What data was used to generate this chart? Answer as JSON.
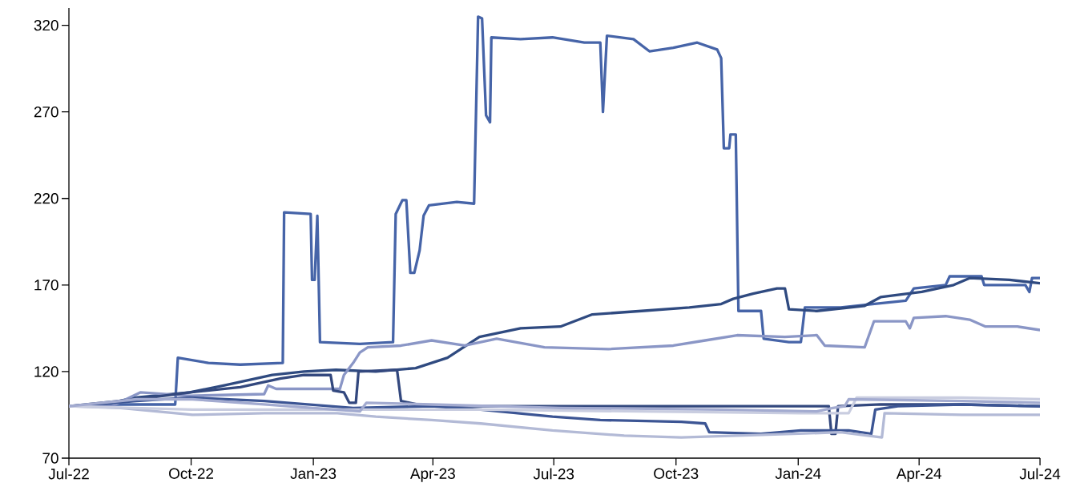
{
  "chart_data": {
    "type": "line",
    "xlim": [
      "2022-07-01",
      "2024-07-01"
    ],
    "ylim": [
      70,
      330
    ],
    "xticks": [
      {
        "value": "2022-07-01",
        "label": "Jul-22"
      },
      {
        "value": "2022-10-01",
        "label": "Oct-22"
      },
      {
        "value": "2023-01-01",
        "label": "Jan-23"
      },
      {
        "value": "2023-04-01",
        "label": "Apr-23"
      },
      {
        "value": "2023-07-01",
        "label": "Jul-23"
      },
      {
        "value": "2023-10-01",
        "label": "Oct-23"
      },
      {
        "value": "2024-01-01",
        "label": "Jan-24"
      },
      {
        "value": "2024-04-01",
        "label": "Apr-24"
      },
      {
        "value": "2024-07-01",
        "label": "Jul-24"
      }
    ],
    "yticks": [
      70,
      120,
      170,
      220,
      270,
      320
    ],
    "marker": "none",
    "line_style": "solid",
    "series": [
      {
        "color": "#4664a8",
        "x": [
          "2022-07-01",
          "2022-08-09",
          "2022-09-19",
          "2022-09-21",
          "2022-10-14",
          "2022-11-07",
          "2022-12-09",
          "2022-12-10",
          "2022-12-30",
          "2022-12-31",
          "2023-01-02",
          "2023-01-04",
          "2023-01-06",
          "2023-02-05",
          "2023-03-02",
          "2023-03-04",
          "2023-03-09",
          "2023-03-12",
          "2023-03-15",
          "2023-03-18",
          "2023-03-22",
          "2023-03-25",
          "2023-03-29",
          "2023-04-19",
          "2023-05-02",
          "2023-05-05",
          "2023-05-08",
          "2023-05-11",
          "2023-05-14",
          "2023-05-15",
          "2023-06-06",
          "2023-06-30",
          "2023-07-24",
          "2023-08-05",
          "2023-08-07",
          "2023-08-10",
          "2023-08-30",
          "2023-09-11",
          "2023-09-29",
          "2023-10-17",
          "2023-11-01",
          "2023-11-04",
          "2023-11-06",
          "2023-11-10",
          "2023-11-11",
          "2023-11-15",
          "2023-11-17",
          "2023-12-04",
          "2023-12-06",
          "2023-12-25",
          "2024-01-03",
          "2024-01-06",
          "2024-02-02",
          "2024-02-26",
          "2024-03-22",
          "2024-03-28",
          "2024-04-21",
          "2024-04-24",
          "2024-05-18",
          "2024-05-20",
          "2024-06-20",
          "2024-06-23",
          "2024-06-25",
          "2024-07-01"
        ],
        "values": [
          100,
          101,
          101,
          128,
          125,
          124,
          125,
          212,
          211,
          173,
          173,
          210,
          137,
          136,
          137,
          211,
          219,
          219,
          177,
          177,
          190,
          210,
          216,
          218,
          217,
          325,
          324,
          268,
          264,
          313,
          312,
          313,
          310,
          310,
          270,
          314,
          312,
          305,
          307,
          310,
          306,
          301,
          249,
          249,
          257,
          257,
          155,
          155,
          139,
          137,
          137,
          157,
          157,
          159,
          161,
          168,
          170,
          175,
          175,
          170,
          170,
          166,
          174,
          174
        ]
      },
      {
        "color": "#2f4a80",
        "x": [
          "2022-07-01",
          "2022-07-27",
          "2022-08-20",
          "2022-09-30",
          "2022-10-26",
          "2022-12-01",
          "2022-12-25",
          "2023-01-18",
          "2023-02-17",
          "2023-03-19",
          "2023-04-12",
          "2023-05-06",
          "2023-06-06",
          "2023-07-06",
          "2023-07-30",
          "2023-09-05",
          "2023-10-11",
          "2023-11-04",
          "2023-11-13",
          "2023-11-28",
          "2023-12-16",
          "2023-12-22",
          "2023-12-25",
          "2024-01-15",
          "2024-02-20",
          "2024-03-03",
          "2024-04-03",
          "2024-04-27",
          "2024-05-09",
          "2024-06-08",
          "2024-07-01"
        ],
        "values": [
          100,
          101,
          105,
          108,
          112,
          118,
          120,
          121,
          120,
          122,
          128,
          140,
          145,
          146,
          153,
          155,
          157,
          159,
          162,
          165,
          168,
          168,
          156,
          155,
          158,
          163,
          166,
          170,
          174,
          173,
          171
        ]
      },
      {
        "color": "#8a96c6",
        "x": [
          "2022-07-01",
          "2022-08-02",
          "2022-08-24",
          "2022-09-30",
          "2022-11-25",
          "2022-11-28",
          "2022-12-04",
          "2023-01-06",
          "2023-01-21",
          "2023-01-24",
          "2023-01-31",
          "2023-02-05",
          "2023-02-11",
          "2023-03-08",
          "2023-03-31",
          "2023-04-25",
          "2023-05-19",
          "2023-06-24",
          "2023-08-11",
          "2023-09-29",
          "2023-10-23",
          "2023-11-16",
          "2023-12-22",
          "2024-01-15",
          "2024-01-21",
          "2024-02-20",
          "2024-02-27",
          "2024-03-22",
          "2024-03-25",
          "2024-03-28",
          "2024-04-21",
          "2024-05-09",
          "2024-05-21",
          "2024-06-14",
          "2024-07-01"
        ],
        "values": [
          100,
          100,
          108,
          106,
          107,
          112,
          110,
          110,
          110,
          118,
          125,
          131,
          134,
          135,
          138,
          135,
          139,
          134,
          133,
          135,
          138,
          141,
          140,
          141,
          135,
          134,
          149,
          149,
          145,
          151,
          152,
          150,
          146,
          146,
          144
        ]
      },
      {
        "color": "#33487e",
        "x": [
          "2022-07-01",
          "2022-08-21",
          "2022-09-30",
          "2022-11-07",
          "2022-12-07",
          "2022-12-25",
          "2023-01-14",
          "2023-01-16",
          "2023-01-24",
          "2023-01-28",
          "2023-02-02",
          "2023-02-04",
          "2023-03-05",
          "2023-03-08",
          "2023-03-20",
          "2023-04-13",
          "2024-01-24",
          "2024-01-26",
          "2024-01-29",
          "2024-01-31",
          "2024-03-03",
          "2024-05-03",
          "2024-07-01"
        ],
        "values": [
          100,
          104,
          108,
          111,
          116,
          118,
          118,
          109,
          108,
          102,
          102,
          120,
          121,
          103,
          101,
          100,
          100,
          84,
          84,
          100,
          101,
          101,
          100
        ]
      },
      {
        "color": "#3c5594",
        "x": [
          "2022-07-01",
          "2022-08-21",
          "2022-09-30",
          "2022-11-25",
          "2023-01-31",
          "2023-03-31",
          "2023-05-07",
          "2023-06-30",
          "2023-08-05",
          "2023-10-05",
          "2023-10-23",
          "2023-10-26",
          "2023-12-04",
          "2024-01-03",
          "2024-02-08",
          "2024-02-25",
          "2024-02-28",
          "2024-03-16",
          "2024-05-03",
          "2024-07-01"
        ],
        "values": [
          100,
          103,
          105,
          103,
          99,
          100,
          98,
          94,
          92,
          91,
          90,
          85,
          84,
          86,
          86,
          84,
          98,
          100,
          101,
          100
        ]
      },
      {
        "color": "#b3bad6",
        "x": [
          "2022-07-01",
          "2022-08-09",
          "2022-10-02",
          "2022-11-25",
          "2023-01-19",
          "2023-02-17",
          "2023-03-31",
          "2023-05-07",
          "2023-06-30",
          "2023-08-23",
          "2023-10-05",
          "2023-11-16",
          "2023-12-28",
          "2024-02-02",
          "2024-03-04",
          "2024-03-06",
          "2024-05-03",
          "2024-07-01"
        ],
        "values": [
          100,
          99,
          95,
          96,
          96,
          94,
          92,
          90,
          86,
          83,
          82,
          83,
          84,
          85,
          82,
          96,
          95,
          95
        ]
      },
      {
        "color": "#c9cde0",
        "x": [
          "2022-07-01",
          "2022-10-02",
          "2023-01-06",
          "2023-05-07",
          "2023-09-05",
          "2024-01-03",
          "2024-02-08",
          "2024-02-14",
          "2024-05-03",
          "2024-07-01"
        ],
        "values": [
          100,
          98,
          98,
          98,
          97,
          96,
          96,
          105,
          105,
          104
        ]
      },
      {
        "color": "#a3abd0",
        "x": [
          "2022-07-01",
          "2022-08-21",
          "2022-10-02",
          "2022-11-25",
          "2023-02-05",
          "2023-02-10",
          "2023-03-31",
          "2023-07-06",
          "2023-11-04",
          "2024-01-15",
          "2024-01-27",
          "2024-02-05",
          "2024-02-08",
          "2024-05-03",
          "2024-07-01"
        ],
        "values": [
          100,
          104,
          104,
          101,
          97,
          102,
          101,
          99,
          98,
          97,
          99,
          100,
          104,
          103,
          102
        ]
      }
    ]
  }
}
